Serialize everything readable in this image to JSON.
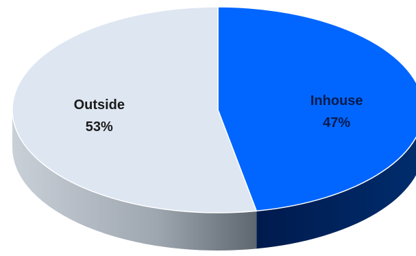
{
  "chart_data": {
    "type": "pie",
    "style": "3d",
    "title": "",
    "slices": [
      {
        "label": "Inhouse",
        "value": 47,
        "value_label": "47%",
        "color": "#0066FF",
        "side_color": "#002D6E",
        "label_color": "#0A1B4D"
      },
      {
        "label": "Outside",
        "value": 53,
        "value_label": "53%",
        "color": "#DDE6F1",
        "side_color": "#B3BCC5",
        "label_color": "#1A1A1A"
      }
    ]
  }
}
